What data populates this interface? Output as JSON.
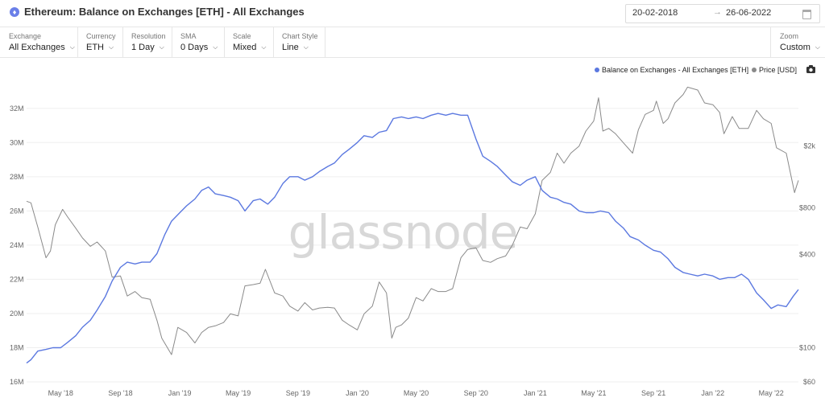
{
  "header": {
    "title": "Ethereum: Balance on Exchanges [ETH] - All Exchanges",
    "icon": "ethereum-icon",
    "date_from": "20-02-2018",
    "date_arrow": "→",
    "date_to": "26-06-2022"
  },
  "toolbar": {
    "exchange": {
      "label": "Exchange",
      "value": "All Exchanges"
    },
    "currency": {
      "label": "Currency",
      "value": "ETH"
    },
    "resolution": {
      "label": "Resolution",
      "value": "1 Day"
    },
    "sma": {
      "label": "SMA",
      "value": "0 Days"
    },
    "scale": {
      "label": "Scale",
      "value": "Mixed"
    },
    "chart_style": {
      "label": "Chart Style",
      "value": "Line"
    },
    "zoom": {
      "label": "Zoom",
      "value": "Custom"
    }
  },
  "watermark": "glassnode",
  "colors": {
    "balance": "#5b78e0",
    "price": "#8a8a8a",
    "grid": "#efefef"
  },
  "chart_data": {
    "type": "line",
    "x_tick_labels": [
      "May '18",
      "Sep '18",
      "Jan '19",
      "May '19",
      "Sep '19",
      "Jan '20",
      "May '20",
      "Sep '20",
      "Jan '21",
      "May '21",
      "Sep '21",
      "Jan '22",
      "May '22"
    ],
    "x_ticks": [
      "2018-05-01",
      "2018-09-01",
      "2019-01-01",
      "2019-05-01",
      "2019-09-01",
      "2020-01-01",
      "2020-05-01",
      "2020-09-01",
      "2021-01-01",
      "2021-05-01",
      "2021-09-01",
      "2022-01-01",
      "2022-05-01"
    ],
    "x_range": [
      "2018-02-20",
      "2022-06-26"
    ],
    "left_axis": {
      "ticks": [
        16,
        18,
        20,
        22,
        24,
        26,
        28,
        30,
        32
      ],
      "tick_labels": [
        "16M",
        "18M",
        "20M",
        "22M",
        "24M",
        "26M",
        "28M",
        "30M",
        "32M"
      ],
      "range": [
        16,
        33.4
      ],
      "unit": "M ETH"
    },
    "right_axis": {
      "scale": "log",
      "ticks": [
        60,
        100,
        400,
        800,
        2000
      ],
      "tick_labels": [
        "$60",
        "$100",
        "$400",
        "$800",
        "$2k"
      ],
      "range": [
        60,
        5000
      ],
      "unit": "USD"
    },
    "legend": {
      "position": "top-right",
      "camera_icon": true
    },
    "grid": true,
    "series": [
      {
        "name": "Balance on Exchanges - All Exchanges [ETH]",
        "axis": "left",
        "points": [
          [
            "2018-02-20",
            17.1
          ],
          [
            "2018-03-01",
            17.3
          ],
          [
            "2018-03-15",
            17.8
          ],
          [
            "2018-04-01",
            17.9
          ],
          [
            "2018-04-15",
            18.0
          ],
          [
            "2018-05-01",
            18.0
          ],
          [
            "2018-05-15",
            18.3
          ],
          [
            "2018-06-01",
            18.7
          ],
          [
            "2018-06-15",
            19.2
          ],
          [
            "2018-07-01",
            19.6
          ],
          [
            "2018-07-15",
            20.2
          ],
          [
            "2018-08-01",
            21.0
          ],
          [
            "2018-08-15",
            21.9
          ],
          [
            "2018-09-01",
            22.7
          ],
          [
            "2018-09-15",
            23.0
          ],
          [
            "2018-10-01",
            22.9
          ],
          [
            "2018-10-15",
            23.0
          ],
          [
            "2018-11-01",
            23.0
          ],
          [
            "2018-11-15",
            23.5
          ],
          [
            "2018-12-01",
            24.6
          ],
          [
            "2018-12-15",
            25.4
          ],
          [
            "2019-01-01",
            25.9
          ],
          [
            "2019-01-15",
            26.3
          ],
          [
            "2019-02-01",
            26.7
          ],
          [
            "2019-02-15",
            27.2
          ],
          [
            "2019-03-01",
            27.4
          ],
          [
            "2019-03-15",
            27.0
          ],
          [
            "2019-04-01",
            26.9
          ],
          [
            "2019-04-15",
            26.8
          ],
          [
            "2019-05-01",
            26.6
          ],
          [
            "2019-05-15",
            26.0
          ],
          [
            "2019-06-01",
            26.6
          ],
          [
            "2019-06-15",
            26.7
          ],
          [
            "2019-07-01",
            26.4
          ],
          [
            "2019-07-15",
            26.8
          ],
          [
            "2019-08-01",
            27.6
          ],
          [
            "2019-08-15",
            28.0
          ],
          [
            "2019-09-01",
            28.0
          ],
          [
            "2019-09-15",
            27.8
          ],
          [
            "2019-10-01",
            28.0
          ],
          [
            "2019-10-15",
            28.3
          ],
          [
            "2019-11-01",
            28.6
          ],
          [
            "2019-11-15",
            28.8
          ],
          [
            "2019-12-01",
            29.3
          ],
          [
            "2019-12-15",
            29.6
          ],
          [
            "2020-01-01",
            30.0
          ],
          [
            "2020-01-15",
            30.4
          ],
          [
            "2020-02-01",
            30.3
          ],
          [
            "2020-02-15",
            30.6
          ],
          [
            "2020-03-01",
            30.7
          ],
          [
            "2020-03-15",
            31.4
          ],
          [
            "2020-04-01",
            31.5
          ],
          [
            "2020-04-15",
            31.4
          ],
          [
            "2020-05-01",
            31.5
          ],
          [
            "2020-05-15",
            31.4
          ],
          [
            "2020-06-01",
            31.6
          ],
          [
            "2020-06-15",
            31.7
          ],
          [
            "2020-07-01",
            31.6
          ],
          [
            "2020-07-15",
            31.7
          ],
          [
            "2020-08-01",
            31.6
          ],
          [
            "2020-08-15",
            31.6
          ],
          [
            "2020-09-01",
            30.2
          ],
          [
            "2020-09-15",
            29.2
          ],
          [
            "2020-10-01",
            28.9
          ],
          [
            "2020-10-15",
            28.6
          ],
          [
            "2020-11-01",
            28.1
          ],
          [
            "2020-11-15",
            27.7
          ],
          [
            "2020-12-01",
            27.5
          ],
          [
            "2020-12-15",
            27.8
          ],
          [
            "2021-01-01",
            28.0
          ],
          [
            "2021-01-15",
            27.2
          ],
          [
            "2021-02-01",
            26.8
          ],
          [
            "2021-02-15",
            26.7
          ],
          [
            "2021-03-01",
            26.5
          ],
          [
            "2021-03-15",
            26.4
          ],
          [
            "2021-04-01",
            26.0
          ],
          [
            "2021-04-15",
            25.9
          ],
          [
            "2021-05-01",
            25.9
          ],
          [
            "2021-05-15",
            26.0
          ],
          [
            "2021-06-01",
            25.9
          ],
          [
            "2021-06-15",
            25.4
          ],
          [
            "2021-07-01",
            25.0
          ],
          [
            "2021-07-15",
            24.5
          ],
          [
            "2021-08-01",
            24.3
          ],
          [
            "2021-08-15",
            24.0
          ],
          [
            "2021-09-01",
            23.7
          ],
          [
            "2021-09-15",
            23.6
          ],
          [
            "2021-10-01",
            23.2
          ],
          [
            "2021-10-15",
            22.7
          ],
          [
            "2021-11-01",
            22.4
          ],
          [
            "2021-11-15",
            22.3
          ],
          [
            "2021-12-01",
            22.2
          ],
          [
            "2021-12-15",
            22.3
          ],
          [
            "2022-01-01",
            22.2
          ],
          [
            "2022-01-15",
            22.0
          ],
          [
            "2022-02-01",
            22.1
          ],
          [
            "2022-02-15",
            22.1
          ],
          [
            "2022-03-01",
            22.3
          ],
          [
            "2022-03-15",
            22.0
          ],
          [
            "2022-04-01",
            21.2
          ],
          [
            "2022-04-15",
            20.8
          ],
          [
            "2022-05-01",
            20.3
          ],
          [
            "2022-05-15",
            20.5
          ],
          [
            "2022-06-01",
            20.4
          ],
          [
            "2022-06-15",
            21.0
          ],
          [
            "2022-06-26",
            21.4
          ]
        ]
      },
      {
        "name": "Price [USD]",
        "axis": "right",
        "points": [
          [
            "2018-02-20",
            880
          ],
          [
            "2018-03-01",
            860
          ],
          [
            "2018-03-15",
            600
          ],
          [
            "2018-04-01",
            380
          ],
          [
            "2018-04-10",
            420
          ],
          [
            "2018-04-20",
            620
          ],
          [
            "2018-05-05",
            780
          ],
          [
            "2018-05-15",
            700
          ],
          [
            "2018-06-01",
            590
          ],
          [
            "2018-06-15",
            510
          ],
          [
            "2018-07-01",
            450
          ],
          [
            "2018-07-15",
            480
          ],
          [
            "2018-08-01",
            420
          ],
          [
            "2018-08-15",
            285
          ],
          [
            "2018-09-01",
            290
          ],
          [
            "2018-09-15",
            215
          ],
          [
            "2018-10-01",
            230
          ],
          [
            "2018-10-15",
            210
          ],
          [
            "2018-11-01",
            205
          ],
          [
            "2018-11-15",
            150
          ],
          [
            "2018-11-25",
            115
          ],
          [
            "2018-12-15",
            90
          ],
          [
            "2018-12-28",
            135
          ],
          [
            "2019-01-15",
            125
          ],
          [
            "2019-02-01",
            107
          ],
          [
            "2019-02-15",
            125
          ],
          [
            "2019-03-01",
            135
          ],
          [
            "2019-03-15",
            138
          ],
          [
            "2019-04-01",
            145
          ],
          [
            "2019-04-15",
            165
          ],
          [
            "2019-05-01",
            160
          ],
          [
            "2019-05-15",
            250
          ],
          [
            "2019-06-01",
            255
          ],
          [
            "2019-06-15",
            260
          ],
          [
            "2019-06-26",
            320
          ],
          [
            "2019-07-15",
            225
          ],
          [
            "2019-08-01",
            215
          ],
          [
            "2019-08-15",
            185
          ],
          [
            "2019-09-01",
            172
          ],
          [
            "2019-09-15",
            195
          ],
          [
            "2019-10-01",
            175
          ],
          [
            "2019-10-15",
            180
          ],
          [
            "2019-11-01",
            182
          ],
          [
            "2019-11-15",
            180
          ],
          [
            "2019-12-01",
            150
          ],
          [
            "2019-12-15",
            140
          ],
          [
            "2020-01-01",
            130
          ],
          [
            "2020-01-15",
            165
          ],
          [
            "2020-02-01",
            185
          ],
          [
            "2020-02-15",
            265
          ],
          [
            "2020-03-01",
            225
          ],
          [
            "2020-03-12",
            115
          ],
          [
            "2020-03-20",
            135
          ],
          [
            "2020-04-01",
            140
          ],
          [
            "2020-04-15",
            155
          ],
          [
            "2020-05-01",
            210
          ],
          [
            "2020-05-15",
            200
          ],
          [
            "2020-06-01",
            240
          ],
          [
            "2020-06-15",
            230
          ],
          [
            "2020-07-01",
            230
          ],
          [
            "2020-07-15",
            240
          ],
          [
            "2020-08-01",
            380
          ],
          [
            "2020-08-15",
            430
          ],
          [
            "2020-09-01",
            440
          ],
          [
            "2020-09-15",
            365
          ],
          [
            "2020-10-01",
            355
          ],
          [
            "2020-10-15",
            375
          ],
          [
            "2020-11-01",
            390
          ],
          [
            "2020-11-15",
            460
          ],
          [
            "2020-12-01",
            600
          ],
          [
            "2020-12-15",
            585
          ],
          [
            "2021-01-01",
            730
          ],
          [
            "2021-01-15",
            1200
          ],
          [
            "2021-02-01",
            1350
          ],
          [
            "2021-02-15",
            1800
          ],
          [
            "2021-03-01",
            1550
          ],
          [
            "2021-03-15",
            1800
          ],
          [
            "2021-04-01",
            2000
          ],
          [
            "2021-04-15",
            2500
          ],
          [
            "2021-05-01",
            2900
          ],
          [
            "2021-05-11",
            4100
          ],
          [
            "2021-05-20",
            2500
          ],
          [
            "2021-06-01",
            2600
          ],
          [
            "2021-06-15",
            2400
          ],
          [
            "2021-07-01",
            2100
          ],
          [
            "2021-07-20",
            1800
          ],
          [
            "2021-08-01",
            2550
          ],
          [
            "2021-08-15",
            3200
          ],
          [
            "2021-09-01",
            3400
          ],
          [
            "2021-09-07",
            3900
          ],
          [
            "2021-09-21",
            2800
          ],
          [
            "2021-10-01",
            3000
          ],
          [
            "2021-10-15",
            3800
          ],
          [
            "2021-11-01",
            4300
          ],
          [
            "2021-11-10",
            4800
          ],
          [
            "2021-12-01",
            4600
          ],
          [
            "2021-12-15",
            3800
          ],
          [
            "2022-01-01",
            3700
          ],
          [
            "2022-01-15",
            3300
          ],
          [
            "2022-01-24",
            2400
          ],
          [
            "2022-02-10",
            3100
          ],
          [
            "2022-02-24",
            2600
          ],
          [
            "2022-03-15",
            2600
          ],
          [
            "2022-04-01",
            3400
          ],
          [
            "2022-04-15",
            3000
          ],
          [
            "2022-05-01",
            2800
          ],
          [
            "2022-05-12",
            1950
          ],
          [
            "2022-06-01",
            1800
          ],
          [
            "2022-06-18",
            1000
          ],
          [
            "2022-06-22",
            1100
          ],
          [
            "2022-06-26",
            1200
          ]
        ]
      }
    ]
  }
}
